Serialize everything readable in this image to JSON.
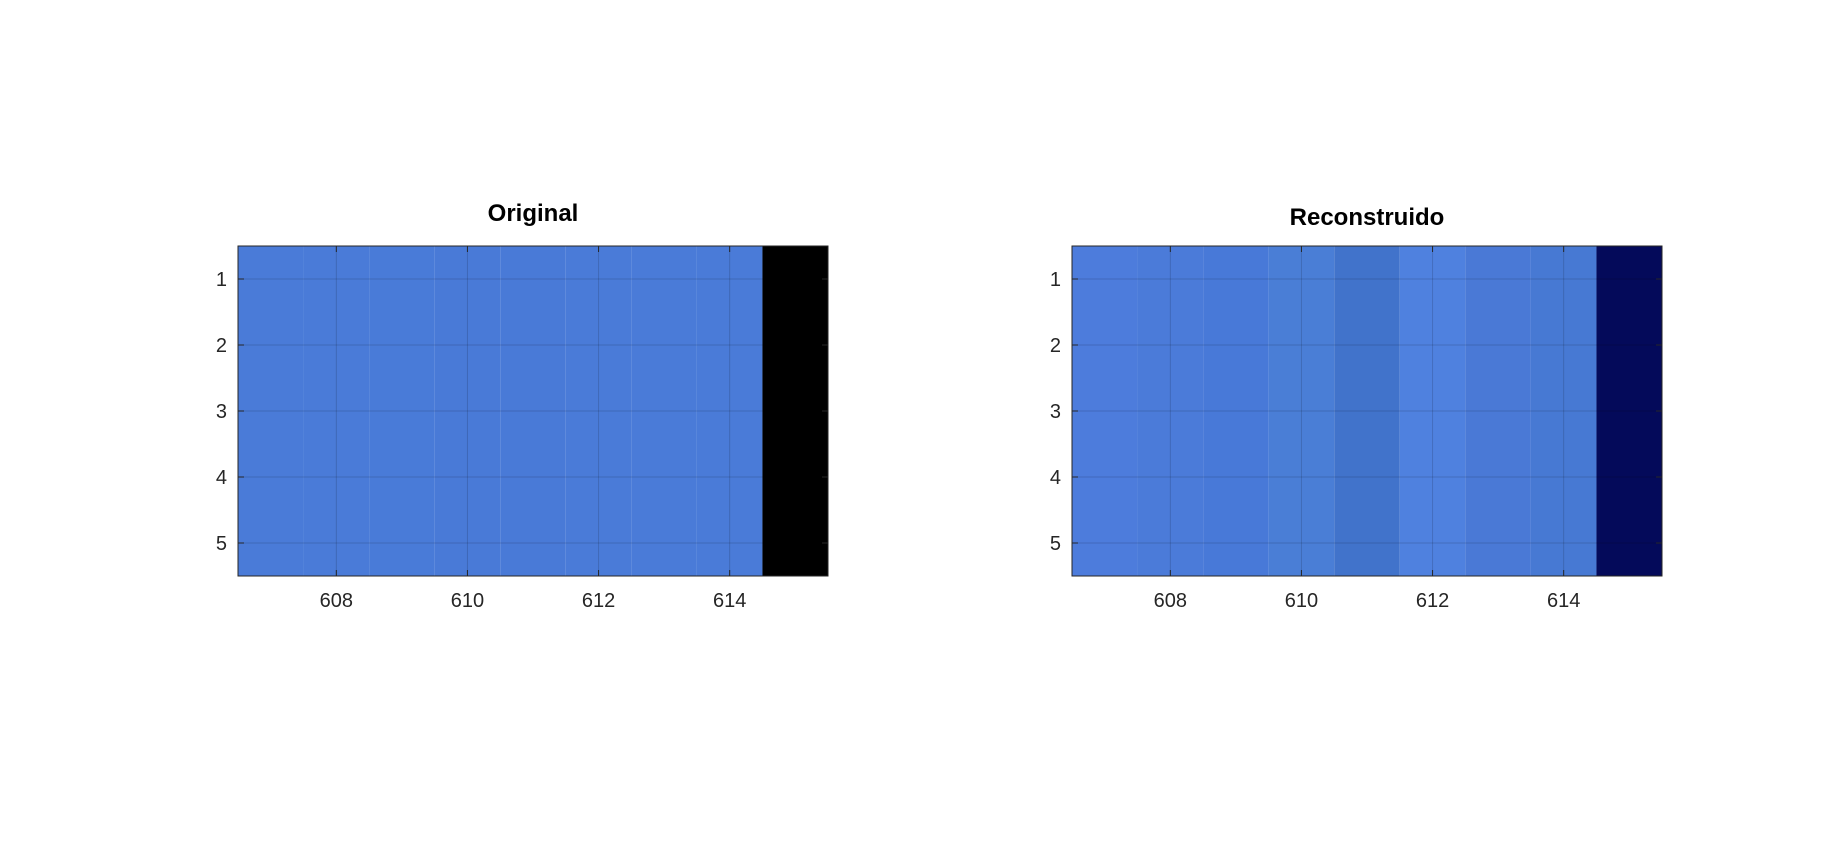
{
  "chart_data": [
    {
      "type": "heatmap",
      "title": "Original",
      "x": [
        607,
        608,
        609,
        610,
        611,
        612,
        613,
        614,
        615
      ],
      "y": [
        1,
        2,
        3,
        4,
        5
      ],
      "xlim": [
        606.5,
        615.5
      ],
      "ylim": [
        0.5,
        5.5
      ],
      "y_direction": "reversed",
      "x_ticks": [
        608,
        610,
        612,
        614
      ],
      "y_ticks": [
        1,
        2,
        3,
        4,
        5
      ],
      "grid": true,
      "column_colors": [
        "#4a7bd8",
        "#4a7bd8",
        "#497bd8",
        "#497ad7",
        "#497ad7",
        "#4a7bd8",
        "#4a7bd8",
        "#4a7bd8",
        "#000000"
      ]
    },
    {
      "type": "heatmap",
      "title": "Reconstruido",
      "x": [
        607,
        608,
        609,
        610,
        611,
        612,
        613,
        614,
        615
      ],
      "y": [
        1,
        2,
        3,
        4,
        5
      ],
      "xlim": [
        606.5,
        615.5
      ],
      "ylim": [
        0.5,
        5.5
      ],
      "y_direction": "reversed",
      "x_ticks": [
        608,
        610,
        612,
        614
      ],
      "y_ticks": [
        1,
        2,
        3,
        4,
        5
      ],
      "grid": true,
      "column_colors": [
        "#4d7cdc",
        "#4b7bd9",
        "#4879d8",
        "#4a7ed6",
        "#4173cb",
        "#4f81df",
        "#4a79d6",
        "#4779d3",
        "#040a5a"
      ]
    }
  ]
}
